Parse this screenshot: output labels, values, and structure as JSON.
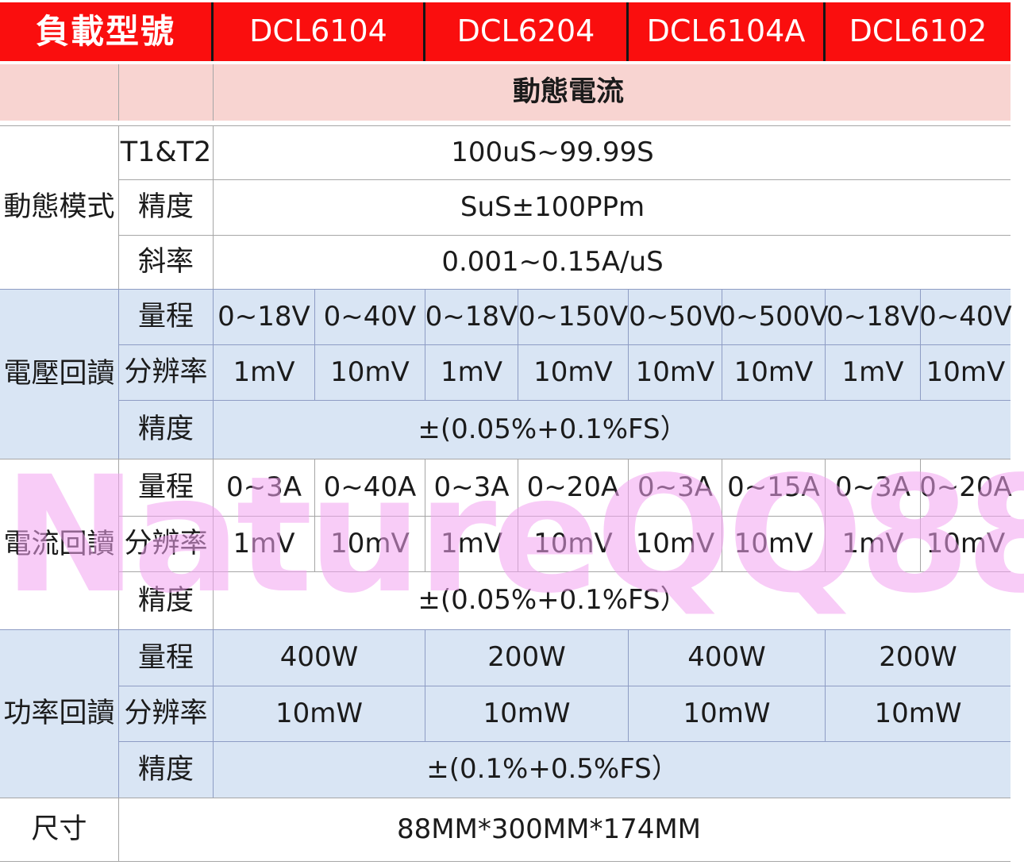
{
  "watermark": "NatureQQ88",
  "colors": {
    "header_red": "#fa0e0e",
    "banner_pink": "#f8d4d1",
    "section_blue": "#d9e5f4",
    "watermark_pink": "rgba(242,162,240,0.55)"
  },
  "header": {
    "load_model_label": "負載型號",
    "models": [
      "DCL6104",
      "DCL6204",
      "DCL6104A",
      "DCL6102"
    ]
  },
  "banner": {
    "label": "動態電流"
  },
  "sections": {
    "dynamic_mode": {
      "label": "動態模式",
      "rows": [
        {
          "param": "T1&T2",
          "value": "100uS~99.99S"
        },
        {
          "param": "精度",
          "value": "SuS±100PPm"
        },
        {
          "param": "斜率",
          "value": "0.001~0.15A/uS"
        }
      ]
    },
    "voltage_readback": {
      "label": "電壓回讀",
      "range_label": "量程",
      "ranges": [
        "0~18V",
        "0~40V",
        "0~18V",
        "0~150V",
        "0~50V",
        "0~500V",
        "0~18V",
        "0~40V"
      ],
      "resolution_label": "分辨率",
      "resolutions": [
        "1mV",
        "10mV",
        "1mV",
        "10mV",
        "10mV",
        "10mV",
        "1mV",
        "10mV"
      ],
      "accuracy_label": "精度",
      "accuracy": "±(0.05%+0.1%FS）"
    },
    "current_readback": {
      "label": "電流回讀",
      "range_label": "量程",
      "ranges": [
        "0~3A",
        "0~40A",
        "0~3A",
        "0~20A",
        "0~3A",
        "0~15A",
        "0~3A",
        "0~20A"
      ],
      "resolution_label": "分辨率",
      "resolutions": [
        "1mV",
        "10mV",
        "1mV",
        "10mV",
        "10mV",
        "10mV",
        "1mV",
        "10mV"
      ],
      "accuracy_label": "精度",
      "accuracy": "±(0.05%+0.1%FS）"
    },
    "power_readback": {
      "label": "功率回讀",
      "range_label": "量程",
      "ranges": [
        "400W",
        "200W",
        "400W",
        "200W"
      ],
      "resolution_label": "分辨率",
      "resolutions": [
        "10mW",
        "10mW",
        "10mW",
        "10mW"
      ],
      "accuracy_label": "精度",
      "accuracy": "±(0.1%+0.5%FS）"
    },
    "dimensions": {
      "label": "尺寸",
      "value": "88MM*300MM*174MM"
    }
  }
}
